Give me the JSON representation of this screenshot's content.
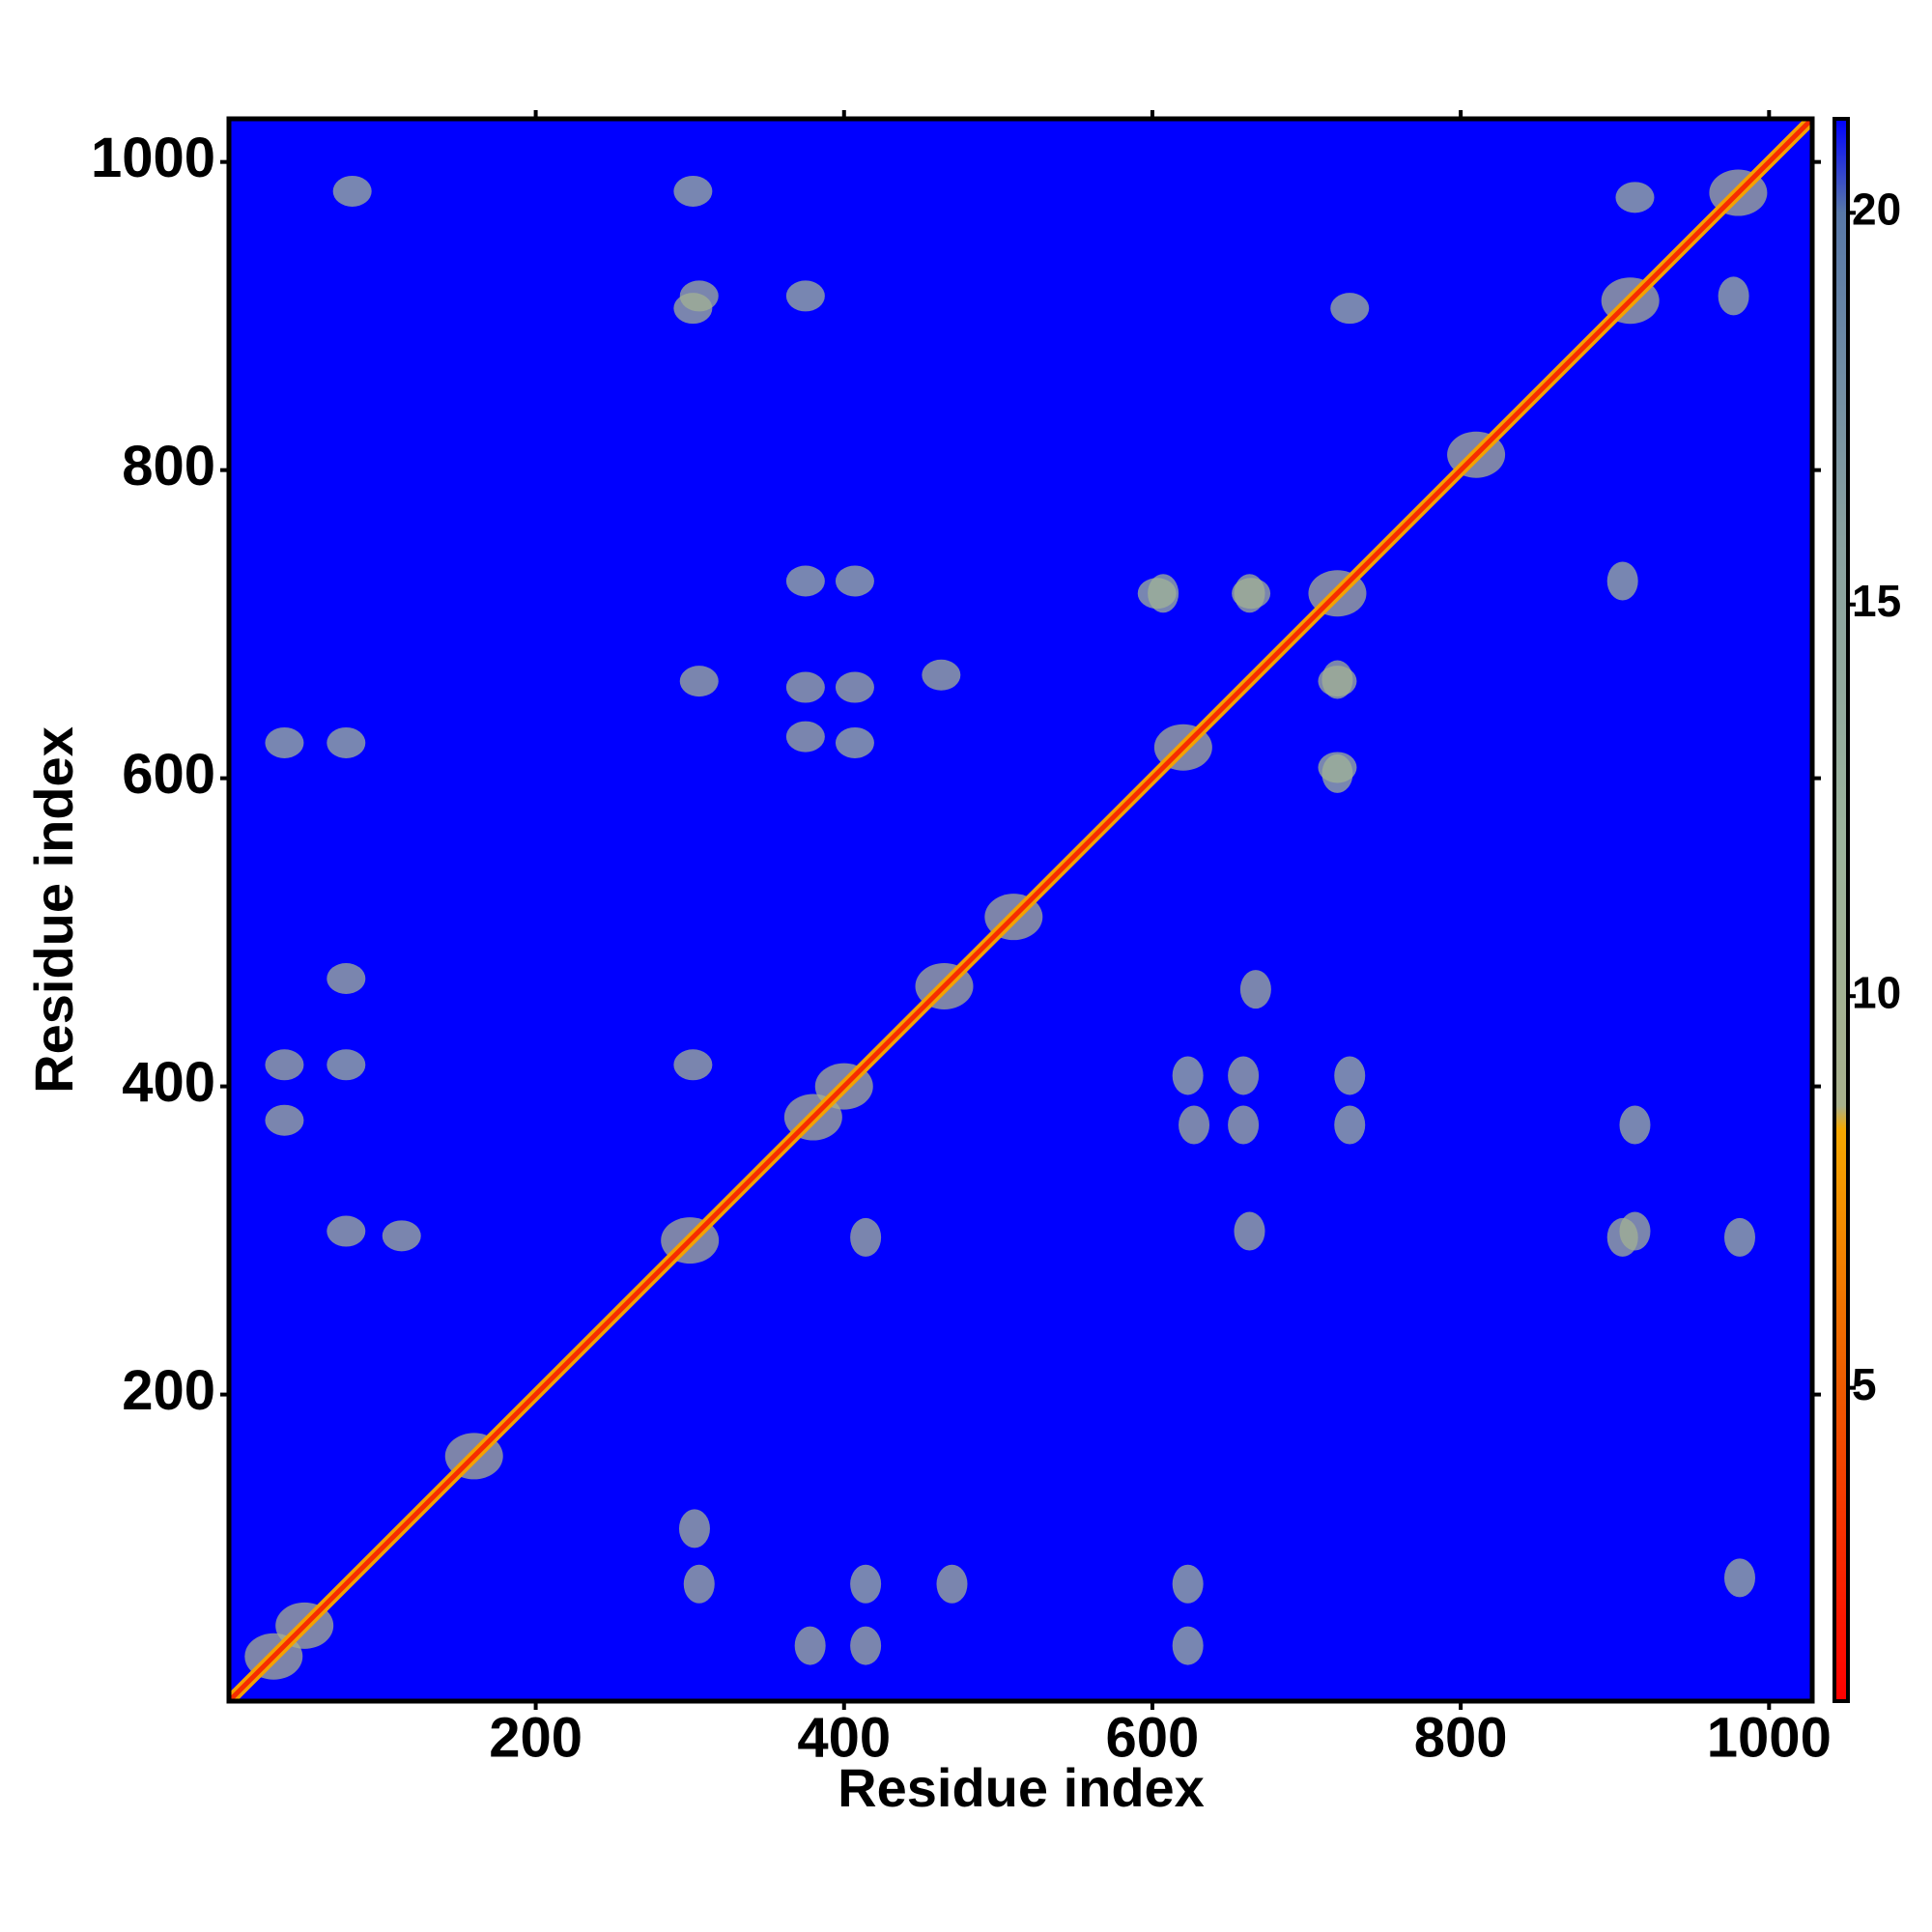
{
  "chart_data": {
    "type": "contact_map",
    "xlabel": "Residue index",
    "ylabel": "Residue index",
    "xlim": [
      1,
      1028
    ],
    "ylim": [
      1,
      1028
    ],
    "xticks": [
      200,
      400,
      600,
      800,
      1000
    ],
    "yticks": [
      200,
      400,
      600,
      800,
      1000
    ],
    "clim": [
      1,
      21.2
    ],
    "cticks": [
      5,
      10,
      15,
      20
    ],
    "colorscale": [
      [
        1,
        "#ff0000"
      ],
      [
        5,
        "#ee5a00"
      ],
      [
        8.3,
        "#f5a800"
      ],
      [
        8.6,
        "#a8b08c"
      ],
      [
        12,
        "#9cb49c"
      ],
      [
        16,
        "#88a0a0"
      ],
      [
        20,
        "#5878a8"
      ],
      [
        21.2,
        "#0000ff"
      ]
    ],
    "background_value": 21.2,
    "diagonal_value": 3,
    "contacts": [
      {
        "x": 306,
        "y": 663,
        "value": 10
      },
      {
        "x": 375,
        "y": 659,
        "value": 10
      },
      {
        "x": 407,
        "y": 659,
        "value": 10
      },
      {
        "x": 375,
        "y": 627,
        "value": 10
      },
      {
        "x": 407,
        "y": 623,
        "value": 11
      },
      {
        "x": 463,
        "y": 667,
        "value": 10
      },
      {
        "x": 375,
        "y": 728,
        "value": 11
      },
      {
        "x": 407,
        "y": 728,
        "value": 11
      },
      {
        "x": 306,
        "y": 913,
        "value": 10
      },
      {
        "x": 375,
        "y": 913,
        "value": 11
      },
      {
        "x": 77,
        "y": 470,
        "value": 10
      },
      {
        "x": 37,
        "y": 623,
        "value": 11
      },
      {
        "x": 77,
        "y": 623,
        "value": 11
      },
      {
        "x": 37,
        "y": 414,
        "value": 10
      },
      {
        "x": 37,
        "y": 378,
        "value": 10
      },
      {
        "x": 77,
        "y": 414,
        "value": 11
      },
      {
        "x": 77,
        "y": 306,
        "value": 10
      },
      {
        "x": 113,
        "y": 303,
        "value": 10
      },
      {
        "x": 302,
        "y": 414,
        "value": 10
      },
      {
        "x": 664,
        "y": 720,
        "value": 10
      },
      {
        "x": 603,
        "y": 720,
        "value": 11
      },
      {
        "x": 720,
        "y": 663,
        "value": 10
      },
      {
        "x": 720,
        "y": 607,
        "value": 11
      },
      {
        "x": 913,
        "y": 977,
        "value": 11
      },
      {
        "x": 81,
        "y": 981,
        "value": 11
      },
      {
        "x": 302,
        "y": 981,
        "value": 11
      },
      {
        "x": 728,
        "y": 905,
        "value": 11
      },
      {
        "x": 302,
        "y": 905,
        "value": 10
      },
      {
        "x": 400,
        "y": 400,
        "value": 9
      },
      {
        "x": 380,
        "y": 380,
        "value": 9
      },
      {
        "x": 300,
        "y": 300,
        "value": 9
      },
      {
        "x": 620,
        "y": 620,
        "value": 9
      },
      {
        "x": 720,
        "y": 720,
        "value": 9
      },
      {
        "x": 160,
        "y": 160,
        "value": 9
      },
      {
        "x": 465,
        "y": 465,
        "value": 9
      },
      {
        "x": 510,
        "y": 510,
        "value": 9
      },
      {
        "x": 910,
        "y": 910,
        "value": 9
      },
      {
        "x": 980,
        "y": 980,
        "value": 9
      },
      {
        "x": 50,
        "y": 50,
        "value": 9
      },
      {
        "x": 30,
        "y": 30,
        "value": 9
      },
      {
        "x": 810,
        "y": 810,
        "value": 9
      }
    ]
  }
}
